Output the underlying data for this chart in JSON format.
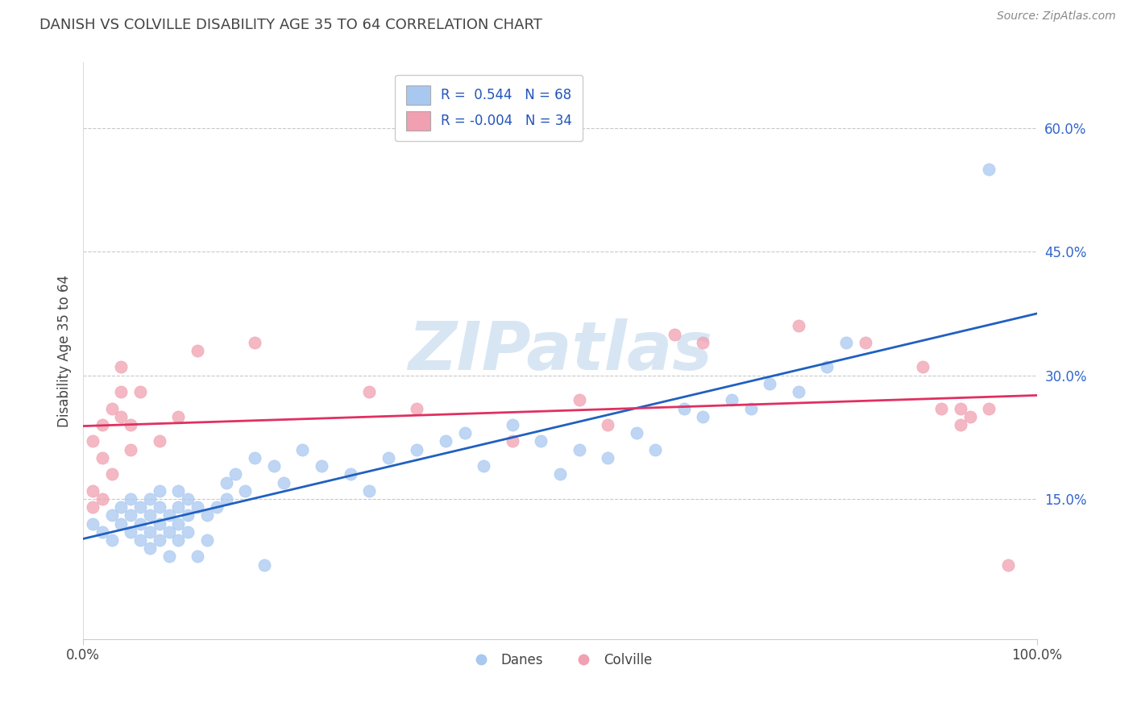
{
  "title": "DANISH VS COLVILLE DISABILITY AGE 35 TO 64 CORRELATION CHART",
  "source_text": "Source: ZipAtlas.com",
  "ylabel": "Disability Age 35 to 64",
  "xlim": [
    0.0,
    1.0
  ],
  "ylim": [
    -0.02,
    0.68
  ],
  "yticks": [
    0.15,
    0.3,
    0.45,
    0.6
  ],
  "ytick_labels": [
    "15.0%",
    "30.0%",
    "45.0%",
    "60.0%"
  ],
  "xticks": [
    0.0,
    1.0
  ],
  "xtick_labels": [
    "0.0%",
    "100.0%"
  ],
  "danes_color": "#A8C8F0",
  "colville_color": "#F0A0B0",
  "danes_line_color": "#2060C0",
  "colville_line_color": "#E03060",
  "danes_R": 0.544,
  "danes_N": 68,
  "colville_R": -0.004,
  "colville_N": 34,
  "legend_r_color": "#2255BB",
  "watermark_color": "#C8DCF0",
  "danes_x": [
    0.01,
    0.02,
    0.03,
    0.03,
    0.04,
    0.04,
    0.05,
    0.05,
    0.05,
    0.06,
    0.06,
    0.06,
    0.07,
    0.07,
    0.07,
    0.07,
    0.08,
    0.08,
    0.08,
    0.08,
    0.09,
    0.09,
    0.09,
    0.1,
    0.1,
    0.1,
    0.1,
    0.11,
    0.11,
    0.11,
    0.12,
    0.12,
    0.13,
    0.13,
    0.14,
    0.15,
    0.15,
    0.16,
    0.17,
    0.18,
    0.19,
    0.2,
    0.21,
    0.23,
    0.25,
    0.28,
    0.3,
    0.32,
    0.35,
    0.38,
    0.4,
    0.42,
    0.45,
    0.48,
    0.5,
    0.52,
    0.55,
    0.58,
    0.6,
    0.63,
    0.65,
    0.68,
    0.7,
    0.72,
    0.75,
    0.78,
    0.8,
    0.95
  ],
  "danes_y": [
    0.12,
    0.11,
    0.1,
    0.13,
    0.12,
    0.14,
    0.11,
    0.13,
    0.15,
    0.1,
    0.12,
    0.14,
    0.09,
    0.11,
    0.13,
    0.15,
    0.1,
    0.12,
    0.14,
    0.16,
    0.11,
    0.13,
    0.08,
    0.1,
    0.12,
    0.14,
    0.16,
    0.11,
    0.13,
    0.15,
    0.08,
    0.14,
    0.1,
    0.13,
    0.14,
    0.15,
    0.17,
    0.18,
    0.16,
    0.2,
    0.07,
    0.19,
    0.17,
    0.21,
    0.19,
    0.18,
    0.16,
    0.2,
    0.21,
    0.22,
    0.23,
    0.19,
    0.24,
    0.22,
    0.18,
    0.21,
    0.2,
    0.23,
    0.21,
    0.26,
    0.25,
    0.27,
    0.26,
    0.29,
    0.28,
    0.31,
    0.34,
    0.55
  ],
  "colville_x": [
    0.01,
    0.01,
    0.01,
    0.02,
    0.02,
    0.02,
    0.03,
    0.03,
    0.04,
    0.04,
    0.04,
    0.05,
    0.05,
    0.06,
    0.08,
    0.1,
    0.12,
    0.18,
    0.3,
    0.35,
    0.45,
    0.52,
    0.55,
    0.62,
    0.65,
    0.75,
    0.82,
    0.88,
    0.9,
    0.92,
    0.92,
    0.93,
    0.95,
    0.97
  ],
  "colville_y": [
    0.14,
    0.16,
    0.22,
    0.15,
    0.2,
    0.24,
    0.18,
    0.26,
    0.25,
    0.28,
    0.31,
    0.21,
    0.24,
    0.28,
    0.22,
    0.25,
    0.33,
    0.34,
    0.28,
    0.26,
    0.22,
    0.27,
    0.24,
    0.35,
    0.34,
    0.36,
    0.34,
    0.31,
    0.26,
    0.26,
    0.24,
    0.25,
    0.26,
    0.07
  ]
}
